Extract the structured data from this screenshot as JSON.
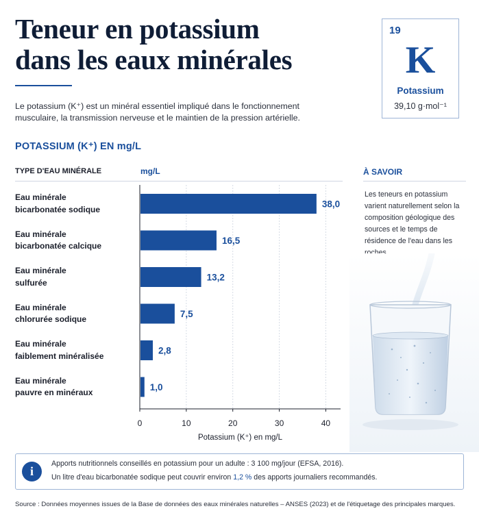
{
  "header": {
    "title_line1": "Teneur en potassium",
    "title_line2": "dans les eaux minérales",
    "intro": "Le potassium (K⁺) est un minéral essentiel impliqué dans le fonctionnement musculaire, la transmission nerveuse et le maintien de la pression artérielle."
  },
  "element": {
    "number": "19",
    "symbol": "K",
    "name": "Potassium",
    "mass": "39,10 g·mol⁻¹"
  },
  "section_title": "POTASSIUM (K⁺) EN mg/L",
  "table_head": {
    "left": "TYPE D'EAU MINÉRALE",
    "unit": "mg/L"
  },
  "side": {
    "title": "À SAVOIR",
    "text": "Les teneurs en potassium varient naturellement selon la composition géologique des sources et le temps de résidence de l'eau dans les roches."
  },
  "info": {
    "line1": "Apports nutritionnels conseillés en potassium pour un adulte : 3 100 mg/jour (EFSA, 2016).",
    "line2_before": "Un litre d'eau bicarbonatée sodique peut couvrir environ ",
    "line2_highlight": "1,2 %",
    "line2_after": " des apports journaliers recommandés."
  },
  "source": "Source : Données moyennes issues de la Base de données des eaux minérales naturelles – ANSES (2023) et de l'étiquetage des principales marques.",
  "colors": {
    "bar": "#1a4f9c",
    "accent": "#1a4f9c",
    "grid": "#d5dbe5"
  },
  "chart_data": {
    "type": "bar",
    "orientation": "horizontal",
    "categories": [
      [
        "Eau minérale",
        "bicarbonatée sodique"
      ],
      [
        "Eau minérale",
        "bicarbonatée calcique"
      ],
      [
        "Eau minérale",
        "sulfurée"
      ],
      [
        "Eau minérale",
        "chlorurée sodique"
      ],
      [
        "Eau minérale",
        "faiblement minéralisée"
      ],
      [
        "Eau minérale",
        "pauvre en minéraux"
      ]
    ],
    "values": [
      38.0,
      16.5,
      13.2,
      7.5,
      2.8,
      1.0
    ],
    "value_labels": [
      "38,0",
      "16,5",
      "13,2",
      "7,5",
      "2,8",
      "1,0"
    ],
    "xlabel": "Potassium (K⁺) en mg/L",
    "xlim": [
      0,
      42
    ],
    "xticks": [
      0,
      10,
      20,
      30,
      40
    ],
    "grid": true
  }
}
